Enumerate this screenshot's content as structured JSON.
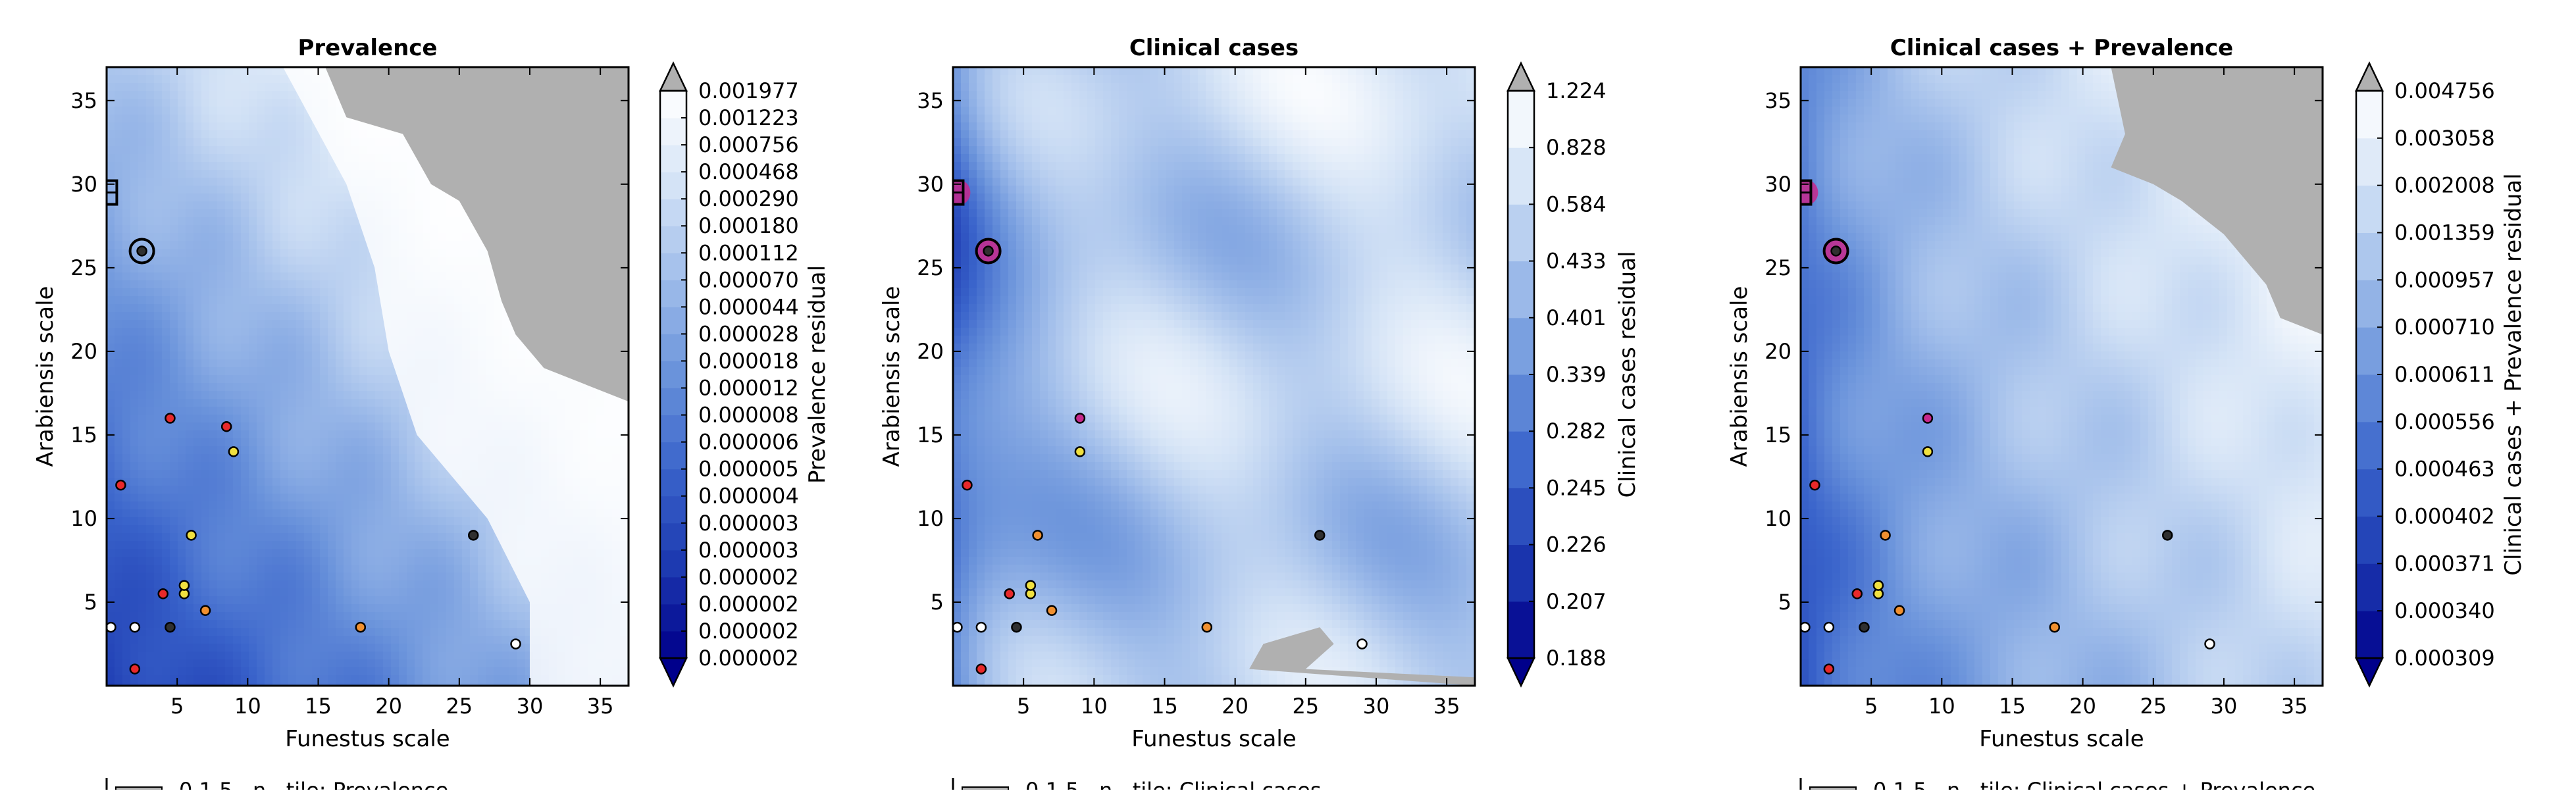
{
  "figure": {
    "panels": [
      {
        "title": "Prevalence",
        "colorbar_label": "Prevalence residual",
        "legend_partial_text": "0.1 5...n...tile: Prevalence"
      },
      {
        "title": "Clinical cases",
        "colorbar_label": "Clinical cases residual",
        "legend_partial_text": "0.1 5...n...tile: Clinical cases"
      },
      {
        "title": "Clinical cases + Prevalence",
        "colorbar_label": "Clinical cases + Prevalence residual",
        "legend_partial_text": "0.1 5...n...tile: Clinical cases + Prevalence"
      }
    ]
  },
  "colors": {
    "cmap": [
      "#00008b",
      "#1d3ab1",
      "#3a64cb",
      "#6a93db",
      "#a0bdea",
      "#d4e3f6",
      "#ffffff"
    ],
    "above_range": "#b0b0b0",
    "below_range": "#00008b",
    "point_red": "#e8292a",
    "point_yellow": "#f0e040",
    "point_orange": "#f09030",
    "point_white": "#ffffff",
    "point_dark": "#303030",
    "magenta": "#c8288c"
  },
  "chart_data": [
    {
      "type": "heatmap",
      "title": "Prevalence",
      "xlabel": "Funestus scale",
      "ylabel": "Arabiensis scale",
      "xlim": [
        0,
        37
      ],
      "ylim": [
        0,
        37
      ],
      "xticks": [
        "5",
        "10",
        "15",
        "20",
        "25",
        "30",
        "35"
      ],
      "yticks": [
        "5",
        "10",
        "15",
        "20",
        "25",
        "30",
        "35"
      ],
      "colorbar": {
        "label": "Prevalence residual",
        "levels": [
          "0.000002",
          "0.000002",
          "0.000002",
          "0.000002",
          "0.000003",
          "0.000003",
          "0.000004",
          "0.000005",
          "0.000006",
          "0.000008",
          "0.000012",
          "0.000018",
          "0.000028",
          "0.000044",
          "0.000070",
          "0.000112",
          "0.000180",
          "0.000290",
          "0.000468",
          "0.000756",
          "0.001223",
          "0.001977"
        ],
        "extend": "both"
      },
      "grey_region_above_max": [
        [
          15.5,
          37
        ],
        [
          17,
          34
        ],
        [
          21,
          33
        ],
        [
          23,
          30
        ],
        [
          25,
          29
        ],
        [
          27,
          26
        ],
        [
          28,
          23
        ],
        [
          29,
          21
        ],
        [
          31,
          19
        ],
        [
          34,
          18
        ],
        [
          37,
          17
        ],
        [
          37,
          37
        ]
      ],
      "white_region_x_min_by_y": [
        [
          37,
          12.5
        ],
        [
          30,
          17
        ],
        [
          25,
          19
        ],
        [
          20,
          20
        ],
        [
          15,
          22
        ],
        [
          10,
          27
        ],
        [
          5,
          30
        ],
        [
          0,
          30
        ]
      ],
      "points": [
        {
          "x": 2.5,
          "y": 26,
          "color": "dark",
          "circled": true
        },
        {
          "x": 0.3,
          "y": 29.5,
          "color": "dark",
          "marker": "square"
        },
        {
          "x": 4.5,
          "y": 16,
          "color": "red"
        },
        {
          "x": 8.5,
          "y": 15.5,
          "color": "red"
        },
        {
          "x": 9,
          "y": 14,
          "color": "yellow"
        },
        {
          "x": 1,
          "y": 12,
          "color": "red"
        },
        {
          "x": 6,
          "y": 9,
          "color": "yellow"
        },
        {
          "x": 26,
          "y": 9,
          "color": "dark"
        },
        {
          "x": 4,
          "y": 5.5,
          "color": "red"
        },
        {
          "x": 5.5,
          "y": 5.5,
          "color": "yellow"
        },
        {
          "x": 5.5,
          "y": 6,
          "color": "yellow"
        },
        {
          "x": 7,
          "y": 4.5,
          "color": "orange"
        },
        {
          "x": 0.3,
          "y": 3.5,
          "color": "white"
        },
        {
          "x": 2,
          "y": 3.5,
          "color": "white"
        },
        {
          "x": 4.5,
          "y": 3.5,
          "color": "dark"
        },
        {
          "x": 18,
          "y": 3.5,
          "color": "orange"
        },
        {
          "x": 29,
          "y": 2.5,
          "color": "white"
        },
        {
          "x": 2,
          "y": 1,
          "color": "red"
        }
      ]
    },
    {
      "type": "heatmap",
      "title": "Clinical cases",
      "xlabel": "Funestus scale",
      "ylabel": "Arabiensis scale",
      "xlim": [
        0,
        37
      ],
      "ylim": [
        0,
        37
      ],
      "xticks": [
        "5",
        "10",
        "15",
        "20",
        "25",
        "30",
        "35"
      ],
      "yticks": [
        "5",
        "10",
        "15",
        "20",
        "25",
        "30",
        "35"
      ],
      "colorbar": {
        "label": "Clinical cases residual",
        "levels": [
          "0.188",
          "0.207",
          "0.226",
          "0.245",
          "0.282",
          "0.339",
          "0.401",
          "0.433",
          "0.584",
          "0.828",
          "1.224"
        ],
        "extend": "both"
      },
      "grey_region_above_max": [
        [
          21,
          1
        ],
        [
          22,
          2.5
        ],
        [
          24,
          3
        ],
        [
          26,
          3.5
        ],
        [
          27,
          2.5
        ],
        [
          25,
          1
        ],
        [
          37,
          0.5
        ],
        [
          37,
          0
        ]
      ],
      "points": [
        {
          "x": 0.3,
          "y": 29.5,
          "color": "dark",
          "marker": "square",
          "magenta": true
        },
        {
          "x": 2.5,
          "y": 26,
          "color": "dark",
          "circled": true,
          "magenta": true
        },
        {
          "x": 9,
          "y": 16,
          "color": "magenta"
        },
        {
          "x": 9,
          "y": 14,
          "color": "yellow"
        },
        {
          "x": 1,
          "y": 12,
          "color": "red"
        },
        {
          "x": 6,
          "y": 9,
          "color": "orange"
        },
        {
          "x": 26,
          "y": 9,
          "color": "dark"
        },
        {
          "x": 4,
          "y": 5.5,
          "color": "red"
        },
        {
          "x": 5.5,
          "y": 5.5,
          "color": "yellow"
        },
        {
          "x": 5.5,
          "y": 6,
          "color": "yellow"
        },
        {
          "x": 7,
          "y": 4.5,
          "color": "orange"
        },
        {
          "x": 0.3,
          "y": 3.5,
          "color": "white"
        },
        {
          "x": 2,
          "y": 3.5,
          "color": "white"
        },
        {
          "x": 4.5,
          "y": 3.5,
          "color": "dark"
        },
        {
          "x": 18,
          "y": 3.5,
          "color": "orange"
        },
        {
          "x": 29,
          "y": 2.5,
          "color": "white"
        },
        {
          "x": 2,
          "y": 1,
          "color": "red"
        }
      ]
    },
    {
      "type": "heatmap",
      "title": "Clinical cases + Prevalence",
      "xlabel": "Funestus scale",
      "ylabel": "Arabiensis scale",
      "xlim": [
        0,
        37
      ],
      "ylim": [
        0,
        37
      ],
      "xticks": [
        "5",
        "10",
        "15",
        "20",
        "25",
        "30",
        "35"
      ],
      "yticks": [
        "5",
        "10",
        "15",
        "20",
        "25",
        "30",
        "35"
      ],
      "colorbar": {
        "label": "Clinical cases + Prevalence residual",
        "levels": [
          "0.000309",
          "0.000340",
          "0.000371",
          "0.000402",
          "0.000463",
          "0.000556",
          "0.000611",
          "0.000710",
          "0.000957",
          "0.001359",
          "0.002008",
          "0.003058",
          "0.004756"
        ],
        "extend": "both"
      },
      "grey_region_above_max": [
        [
          22,
          37
        ],
        [
          23,
          33
        ],
        [
          22,
          31
        ],
        [
          25,
          30
        ],
        [
          27,
          29
        ],
        [
          30,
          27
        ],
        [
          33,
          24
        ],
        [
          34,
          22
        ],
        [
          37,
          21
        ],
        [
          37,
          37
        ]
      ],
      "points": [
        {
          "x": 0.3,
          "y": 29.5,
          "color": "dark",
          "marker": "square",
          "magenta": true
        },
        {
          "x": 2.5,
          "y": 26,
          "color": "dark",
          "circled": true,
          "magenta": true
        },
        {
          "x": 9,
          "y": 16,
          "color": "magenta"
        },
        {
          "x": 9,
          "y": 14,
          "color": "yellow"
        },
        {
          "x": 1,
          "y": 12,
          "color": "red"
        },
        {
          "x": 6,
          "y": 9,
          "color": "orange"
        },
        {
          "x": 26,
          "y": 9,
          "color": "dark"
        },
        {
          "x": 4,
          "y": 5.5,
          "color": "red"
        },
        {
          "x": 5.5,
          "y": 5.5,
          "color": "yellow"
        },
        {
          "x": 5.5,
          "y": 6,
          "color": "yellow"
        },
        {
          "x": 7,
          "y": 4.5,
          "color": "orange"
        },
        {
          "x": 0.3,
          "y": 3.5,
          "color": "white"
        },
        {
          "x": 2,
          "y": 3.5,
          "color": "white"
        },
        {
          "x": 4.5,
          "y": 3.5,
          "color": "dark"
        },
        {
          "x": 18,
          "y": 3.5,
          "color": "orange"
        },
        {
          "x": 29,
          "y": 2.5,
          "color": "white"
        },
        {
          "x": 2,
          "y": 1,
          "color": "red"
        }
      ]
    }
  ]
}
